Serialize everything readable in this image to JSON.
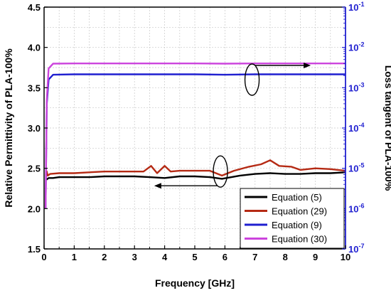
{
  "chart_data": {
    "type": "line",
    "xlabel": "Frequency [GHz]",
    "ylabel_left": "Relative Permittivity of PLA-100%",
    "ylabel_right": "Loss tangent of PLA-100%",
    "xlim": [
      0,
      10
    ],
    "ylim_left": [
      1.5,
      4.5
    ],
    "ylim_right_log10": [
      -7,
      -1
    ],
    "right_axis_scale": "log",
    "grid": true,
    "legend_position": "bottom-right",
    "x_ticks": [
      "0",
      "1",
      "2",
      "3",
      "4",
      "5",
      "6",
      "7",
      "8",
      "9",
      "10"
    ],
    "y_left_ticks": [
      "1.5",
      "2.0",
      "2.5",
      "3.0",
      "3.5",
      "4.0",
      "4.5"
    ],
    "y_right_ticks": [
      {
        "base": "10",
        "exp": "-7"
      },
      {
        "base": "10",
        "exp": "-6"
      },
      {
        "base": "10",
        "exp": "-5"
      },
      {
        "base": "10",
        "exp": "-4"
      },
      {
        "base": "10",
        "exp": "-3"
      },
      {
        "base": "10",
        "exp": "-2"
      },
      {
        "base": "10",
        "exp": "-1"
      }
    ],
    "series": [
      {
        "name": "Equation (5)",
        "axis": "left",
        "color": "#000000",
        "x": [
          0.08,
          0.15,
          0.3,
          0.5,
          1,
          1.5,
          2,
          2.5,
          3,
          3.5,
          4,
          4.5,
          5,
          5.5,
          5.9,
          6.5,
          7,
          7.5,
          8,
          8.5,
          9,
          9.5,
          10
        ],
        "y": [
          2.36,
          2.38,
          2.38,
          2.39,
          2.39,
          2.39,
          2.4,
          2.4,
          2.4,
          2.39,
          2.38,
          2.4,
          2.4,
          2.39,
          2.37,
          2.41,
          2.43,
          2.44,
          2.43,
          2.43,
          2.44,
          2.44,
          2.45
        ]
      },
      {
        "name": "Equation (29)",
        "axis": "left",
        "color": "#b52a14",
        "x": [
          0.08,
          0.12,
          0.2,
          0.5,
          1,
          1.5,
          2,
          2.5,
          3,
          3.3,
          3.55,
          3.75,
          4,
          4.2,
          4.5,
          5,
          5.5,
          5.9,
          6.3,
          6.8,
          7.2,
          7.5,
          7.8,
          8.2,
          8.5,
          9,
          9.5,
          10
        ],
        "y": [
          2.47,
          2.41,
          2.43,
          2.44,
          2.44,
          2.45,
          2.46,
          2.46,
          2.46,
          2.46,
          2.53,
          2.44,
          2.53,
          2.46,
          2.47,
          2.47,
          2.47,
          2.41,
          2.47,
          2.52,
          2.55,
          2.6,
          2.53,
          2.52,
          2.48,
          2.5,
          2.49,
          2.47
        ]
      },
      {
        "name": "Equation (9)",
        "axis": "right",
        "color": "#1f1fd0",
        "x": [
          0.05,
          0.09,
          0.15,
          0.3,
          1,
          2,
          3,
          4,
          5,
          6,
          7,
          8,
          9,
          10
        ],
        "y": [
          1e-06,
          0.0004,
          0.0016,
          0.0021,
          0.00215,
          0.00215,
          0.00215,
          0.00215,
          0.00215,
          0.0021,
          0.00215,
          0.00215,
          0.00215,
          0.00215
        ]
      },
      {
        "name": "Equation (30)",
        "axis": "right",
        "color": "#cc44dd",
        "x": [
          0.05,
          0.09,
          0.15,
          0.3,
          1,
          2,
          3,
          4,
          5,
          6,
          7,
          8,
          9,
          10
        ],
        "y": [
          1e-06,
          0.0005,
          0.003,
          0.00395,
          0.004,
          0.004,
          0.004,
          0.004,
          0.004,
          0.00395,
          0.004,
          0.004,
          0.004,
          0.004
        ]
      }
    ],
    "annotations": [
      {
        "id": "right-ellipse",
        "center": [
          5.85,
          2.46
        ],
        "arrow_to_axis": "right"
      },
      {
        "id": "left-ellipse",
        "center": [
          3.65,
          0.001
        ],
        "arrow_to_axis": "left"
      }
    ]
  }
}
